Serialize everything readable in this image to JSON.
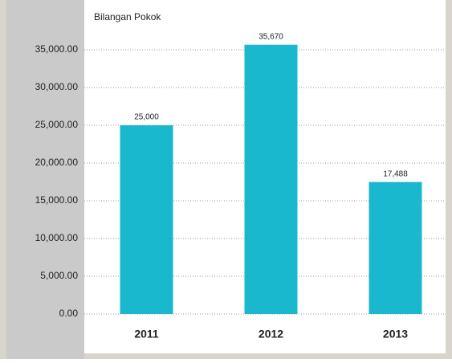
{
  "chart_data": {
    "type": "bar",
    "title": "Bilangan Pokok",
    "categories": [
      "2011",
      "2012",
      "2013"
    ],
    "values": [
      25000,
      35670,
      17488
    ],
    "value_labels": [
      "25,000",
      "35,670",
      "17,488"
    ],
    "color": "#1ab8cf",
    "ylim": [
      0,
      35000
    ],
    "yticks": [
      {
        "value": 0,
        "label": "0.00"
      },
      {
        "value": 5000,
        "label": "5,000.00"
      },
      {
        "value": 10000,
        "label": "10,000.00"
      },
      {
        "value": 15000,
        "label": "15,000.00"
      },
      {
        "value": 20000,
        "label": "20,000.00"
      },
      {
        "value": 25000,
        "label": "25,000.00"
      },
      {
        "value": 30000,
        "label": "30,000.00"
      },
      {
        "value": 35000,
        "label": "35,000.00"
      }
    ],
    "grid": true
  }
}
